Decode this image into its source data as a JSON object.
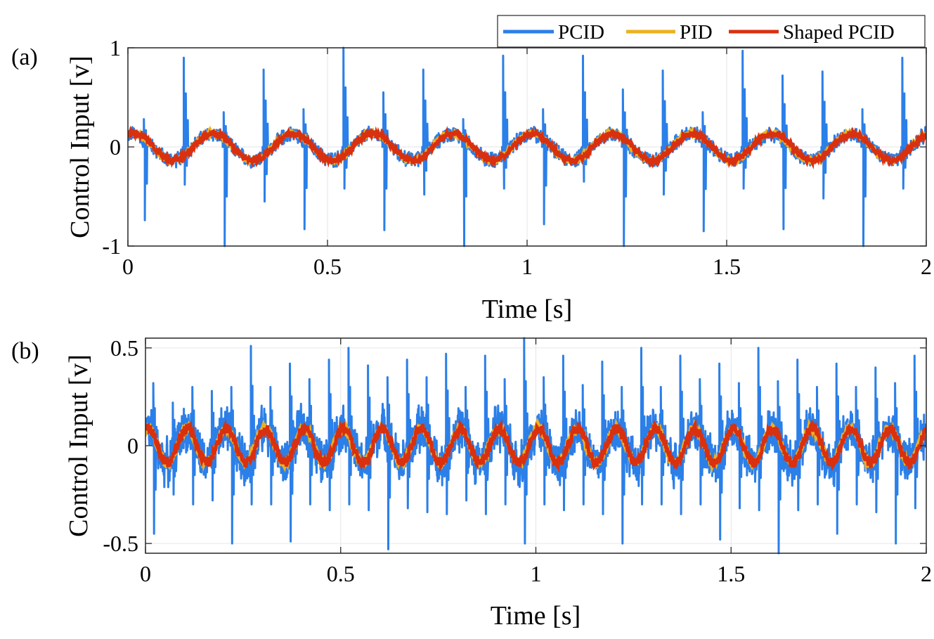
{
  "colors": {
    "pcid": "#2b7fe8",
    "pid": "#edb120",
    "shaped": "#d9300f",
    "grid": "#e6e6e6",
    "axis": "#262626",
    "text": "#000000"
  },
  "legend": {
    "location": "top-right",
    "entries": [
      "PCID",
      "PID",
      "Shaped PCID"
    ]
  },
  "chart_data": [
    {
      "type": "line",
      "panel_label": "(a)",
      "xlabel": "Time [s]",
      "ylabel": "Control Input [v]",
      "xlim": [
        0,
        2
      ],
      "ylim": [
        -1,
        1
      ],
      "xticks": [
        0,
        0.5,
        1,
        1.5,
        2
      ],
      "xtick_labels": [
        "0",
        "0.5",
        "1",
        "1.5",
        "2"
      ],
      "yticks": [
        -1,
        0,
        1
      ],
      "ytick_labels": [
        "-1",
        "0",
        "1"
      ],
      "grid": true,
      "sine_period_s": 0.2,
      "series": [
        {
          "name": "PCID",
          "description": "sinusoid amplitude ~0.13 with large periodic spikes up to about ±1, plus noise ~±0.1"
        },
        {
          "name": "PID",
          "amplitude": 0.14,
          "period_s": 0.2
        },
        {
          "name": "Shaped PCID",
          "amplitude": 0.14,
          "period_s": 0.2
        }
      ],
      "spike_peaks": {
        "x": [
          0.04,
          0.14,
          0.24,
          0.34,
          0.44,
          0.54,
          0.64,
          0.74,
          0.84,
          0.94,
          1.04,
          1.14,
          1.24,
          1.34,
          1.44,
          1.54,
          1.64,
          1.74,
          1.84,
          1.94
        ],
        "y_max": [
          0.28,
          0.9,
          0.35,
          0.78,
          0.38,
          1.0,
          0.55,
          0.78,
          0.28,
          0.92,
          0.38,
          0.92,
          0.58,
          0.77,
          0.35,
          0.97,
          0.72,
          0.76,
          0.38,
          0.9
        ],
        "y_min": [
          -0.74,
          -0.38,
          -1.0,
          -0.55,
          -0.83,
          -0.42,
          -0.84,
          -0.48,
          -1.0,
          -0.42,
          -0.78,
          -0.35,
          -1.0,
          -0.48,
          -0.85,
          -0.42,
          -0.83,
          -0.52,
          -1.0,
          -0.42
        ]
      }
    },
    {
      "type": "line",
      "panel_label": "(b)",
      "xlabel": "Time [s]",
      "ylabel": "Control Input [v]",
      "xlim": [
        0,
        2
      ],
      "ylim": [
        -0.55,
        0.55
      ],
      "xticks": [
        0,
        0.5,
        1,
        1.5,
        2
      ],
      "xtick_labels": [
        "0",
        "0.5",
        "1",
        "1.5",
        "2"
      ],
      "yticks": [
        -0.5,
        0,
        0.5
      ],
      "ytick_labels": [
        "-0.5",
        "0",
        "0.5"
      ],
      "grid": true,
      "sine_period_s": 0.1,
      "series": [
        {
          "name": "PCID",
          "description": "dense noisy signal around ±0.15 with periodic spikes reaching about ±0.5"
        },
        {
          "name": "PID",
          "amplitude": 0.09,
          "period_s": 0.1
        },
        {
          "name": "Shaped PCID",
          "amplitude": 0.09,
          "period_s": 0.1
        }
      ],
      "spike_peaks": {
        "x": [
          0.02,
          0.07,
          0.12,
          0.17,
          0.22,
          0.27,
          0.32,
          0.37,
          0.42,
          0.47,
          0.52,
          0.57,
          0.62,
          0.67,
          0.72,
          0.77,
          0.82,
          0.87,
          0.92,
          0.97,
          1.02,
          1.07,
          1.12,
          1.17,
          1.22,
          1.27,
          1.32,
          1.37,
          1.42,
          1.47,
          1.52,
          1.57,
          1.62,
          1.67,
          1.72,
          1.77,
          1.82,
          1.87,
          1.92,
          1.97
        ],
        "y_max": [
          0.32,
          0.22,
          0.3,
          0.28,
          0.3,
          0.51,
          0.3,
          0.42,
          0.34,
          0.44,
          0.5,
          0.41,
          0.35,
          0.44,
          0.35,
          0.47,
          0.3,
          0.46,
          0.34,
          0.55,
          0.35,
          0.46,
          0.31,
          0.43,
          0.3,
          0.5,
          0.3,
          0.46,
          0.34,
          0.42,
          0.32,
          0.5,
          0.33,
          0.44,
          0.3,
          0.42,
          0.3,
          0.4,
          0.32,
          0.46
        ],
        "y_min": [
          -0.45,
          -0.25,
          -0.3,
          -0.28,
          -0.5,
          -0.3,
          -0.3,
          -0.49,
          -0.3,
          -0.33,
          -0.3,
          -0.33,
          -0.53,
          -0.32,
          -0.34,
          -0.35,
          -0.28,
          -0.35,
          -0.3,
          -0.5,
          -0.3,
          -0.33,
          -0.3,
          -0.35,
          -0.5,
          -0.3,
          -0.3,
          -0.35,
          -0.3,
          -0.48,
          -0.32,
          -0.33,
          -0.55,
          -0.33,
          -0.3,
          -0.45,
          -0.3,
          -0.34,
          -0.5,
          -0.32
        ]
      }
    }
  ]
}
